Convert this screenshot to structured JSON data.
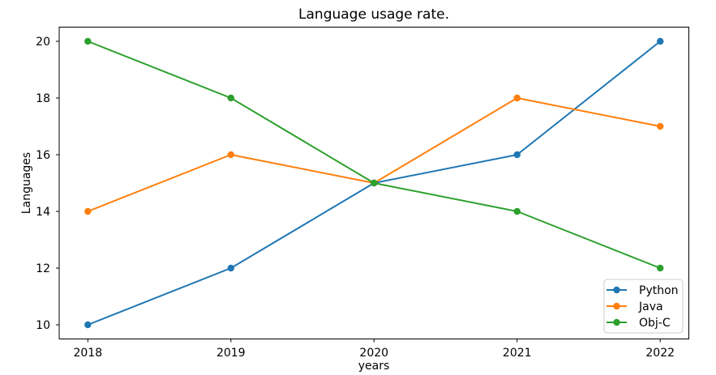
{
  "chart_data": {
    "type": "line",
    "title": "Language usage rate.",
    "xlabel": "years",
    "ylabel": "Languages",
    "categories": [
      2018,
      2019,
      2020,
      2021,
      2022
    ],
    "series": [
      {
        "name": "Python",
        "color": "#1f77b4",
        "values": [
          10,
          12,
          15,
          16,
          20
        ]
      },
      {
        "name": "Java",
        "color": "#ff7f0e",
        "values": [
          14,
          16,
          15,
          18,
          17
        ]
      },
      {
        "name": "Obj-C",
        "color": "#2ca02c",
        "values": [
          20,
          18,
          15,
          14,
          12
        ]
      }
    ],
    "yticks": [
      10,
      12,
      14,
      16,
      18,
      20
    ],
    "xlim": [
      2017.8,
      2022.2
    ],
    "ylim": [
      9.5,
      20.5
    ],
    "grid": false,
    "legend_position": "lower right",
    "marker": "circle",
    "background_color": "#ffffff",
    "axes_color": "#000000",
    "legend_border_color": "#cccccc"
  }
}
